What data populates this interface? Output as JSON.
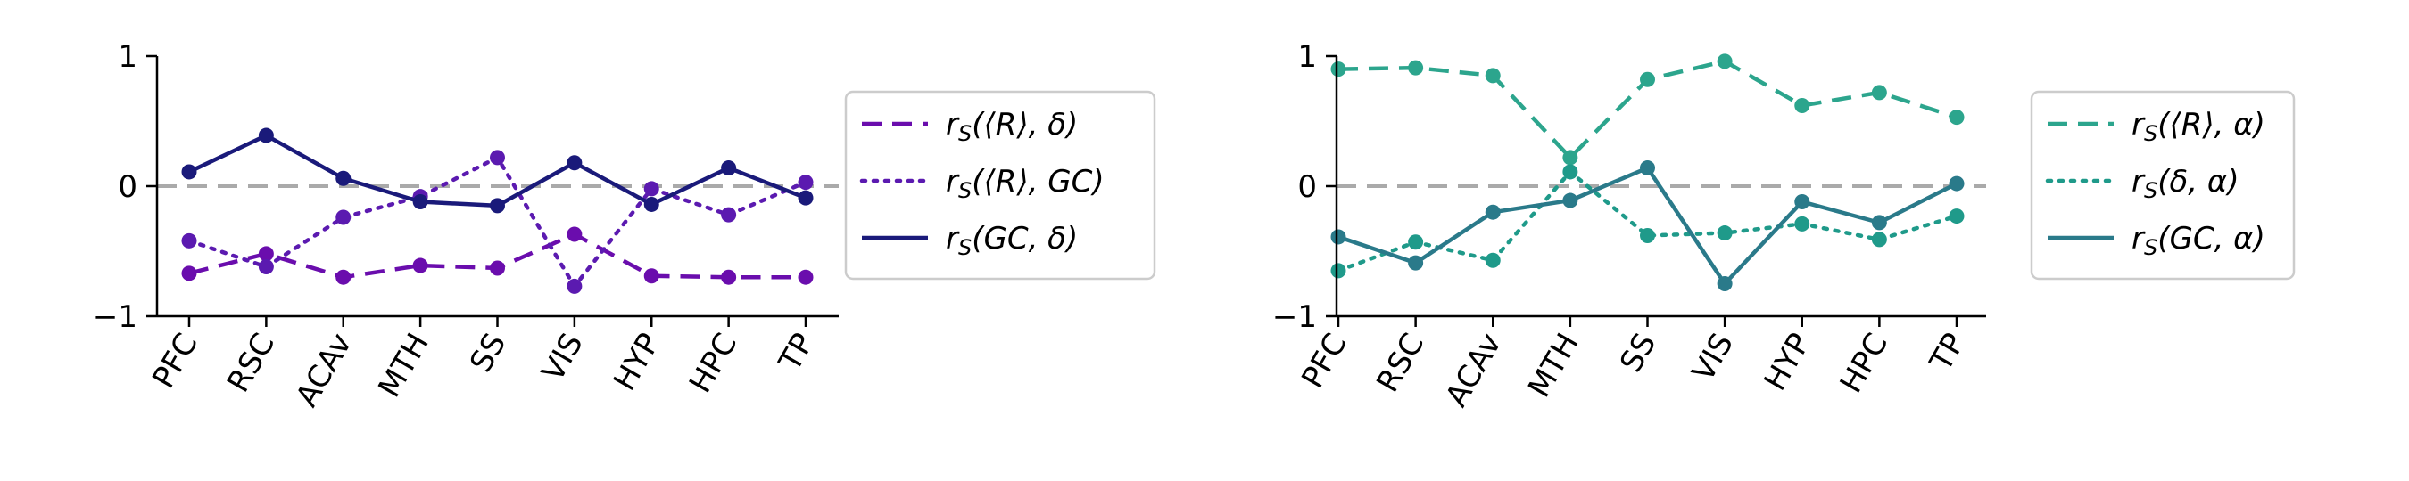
{
  "chart_data": [
    {
      "type": "line",
      "categories": [
        "PFC",
        "RSC",
        "ACAv",
        "MTH",
        "SS",
        "VIS",
        "HYP",
        "HPC",
        "TP"
      ],
      "ylim": [
        -1,
        1
      ],
      "yticks": [
        "1",
        "0",
        "−1"
      ],
      "reference_line": 0,
      "grid": false,
      "legend_position": "right",
      "series": [
        {
          "name": "r_S(⟨R⟩, δ)",
          "label": {
            "main": "r",
            "sub": "S",
            "args": "(⟨R⟩, δ)"
          },
          "style": "dashed",
          "color": "#6a0dad",
          "values": [
            -0.67,
            -0.52,
            -0.7,
            -0.61,
            -0.63,
            -0.37,
            -0.69,
            -0.7,
            -0.7
          ]
        },
        {
          "name": "r_S(⟨R⟩, GC)",
          "label": {
            "main": "r",
            "sub": "S",
            "args": "(⟨R⟩, GC)"
          },
          "style": "dotted",
          "color": "#5b1ab0",
          "values": [
            -0.42,
            -0.62,
            -0.24,
            -0.08,
            0.22,
            -0.77,
            -0.02,
            -0.22,
            0.03
          ]
        },
        {
          "name": "r_S(GC, δ)",
          "label": {
            "main": "r",
            "sub": "S",
            "args": "(GC, δ)"
          },
          "style": "solid",
          "color": "#1a1a7a",
          "values": [
            0.11,
            0.39,
            0.06,
            -0.12,
            -0.15,
            0.18,
            -0.14,
            0.14,
            -0.09
          ]
        }
      ]
    },
    {
      "type": "line",
      "categories": [
        "PFC",
        "RSC",
        "ACAv",
        "MTH",
        "SS",
        "VIS",
        "HYP",
        "HPC",
        "TP"
      ],
      "ylim": [
        -1,
        1
      ],
      "yticks": [
        "1",
        "0",
        "−1"
      ],
      "reference_line": 0,
      "grid": false,
      "legend_position": "right",
      "series": [
        {
          "name": "r_S(⟨R⟩, α)",
          "label": {
            "main": "r",
            "sub": "S",
            "args": "(⟨R⟩, α)"
          },
          "style": "dashed",
          "color": "#2ca58d",
          "values": [
            0.9,
            0.91,
            0.85,
            0.22,
            0.82,
            0.96,
            0.62,
            0.72,
            0.53
          ]
        },
        {
          "name": "r_S(δ, α)",
          "label": {
            "main": "r",
            "sub": "S",
            "args": "(δ, α)"
          },
          "style": "dotted",
          "color": "#1f9a8a",
          "values": [
            -0.65,
            -0.43,
            -0.57,
            0.11,
            -0.38,
            -0.36,
            -0.29,
            -0.41,
            -0.23
          ]
        },
        {
          "name": "r_S(GC, α)",
          "label": {
            "main": "r",
            "sub": "S",
            "args": "(GC, α)"
          },
          "style": "solid",
          "color": "#2a7a8a",
          "values": [
            -0.39,
            -0.59,
            -0.2,
            -0.11,
            0.14,
            -0.75,
            -0.12,
            -0.28,
            0.02
          ]
        }
      ]
    }
  ]
}
